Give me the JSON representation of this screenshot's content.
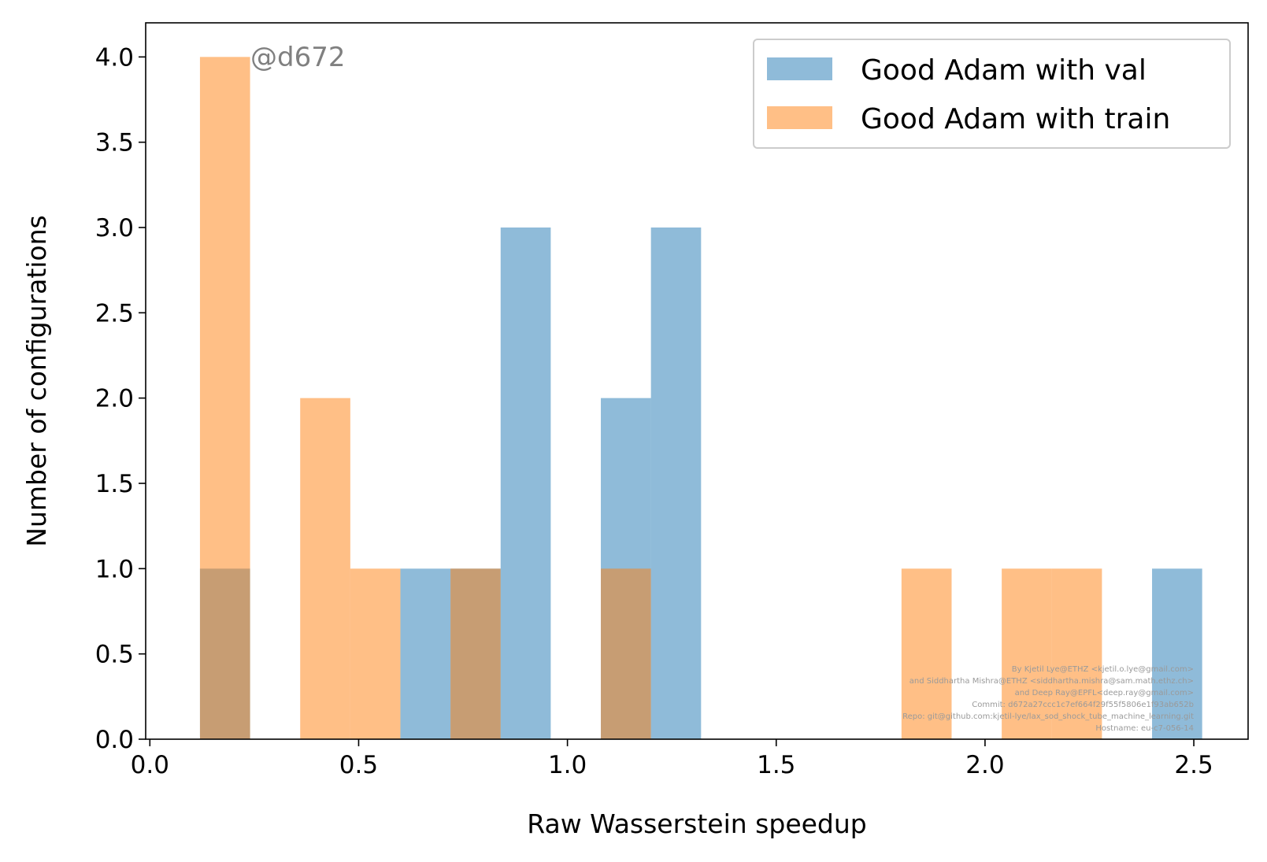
{
  "chart_data": {
    "type": "bar",
    "xlabel": "Raw Wasserstein speedup",
    "ylabel": "Number of configurations",
    "xlim": [
      -0.01,
      2.63
    ],
    "ylim": [
      0,
      4.2
    ],
    "x_ticks": [
      "0.0",
      "0.5",
      "1.0",
      "1.5",
      "2.0",
      "2.5"
    ],
    "y_ticks": [
      "0.0",
      "0.5",
      "1.0",
      "1.5",
      "2.0",
      "2.5",
      "3.0",
      "3.5",
      "4.0"
    ],
    "bin_edges": [
      0.12,
      0.24,
      0.36,
      0.48,
      0.6,
      0.72,
      0.84,
      0.96,
      1.08,
      1.2,
      1.32,
      1.44,
      1.56,
      1.68,
      1.8,
      1.92,
      2.04,
      2.16,
      2.28,
      2.4,
      2.52
    ],
    "series": [
      {
        "name": "Good Adam with val",
        "color": "#1f77b4",
        "values": [
          1,
          0,
          0,
          0,
          1,
          1,
          3,
          0,
          2,
          3,
          0,
          0,
          0,
          0,
          0,
          0,
          0,
          0,
          0,
          1
        ]
      },
      {
        "name": "Good Adam with train",
        "color": "#ff7f0e",
        "values": [
          4,
          0,
          2,
          1,
          0,
          1,
          0,
          0,
          1,
          0,
          0,
          0,
          0,
          0,
          1,
          0,
          1,
          1,
          0,
          0
        ]
      }
    ],
    "bar_alpha": 0.5,
    "legend_placement": "top-right",
    "grid": false,
    "annotation": "@d672",
    "credits": [
      "By Kjetil Lye@ETHZ <kjetil.o.lye@gmail.com>",
      "and Siddhartha Mishra@ETHZ <siddhartha.mishra@sam.math.ethz.ch>",
      "and Deep Ray@EPFL<deep.ray@gmail.com>",
      "Commit: d672a27ccc1c7ef664f29f55f5806e1f93ab652b",
      "Repo: git@github.com:kjetil-lye/lax_sod_shock_tube_machine_learning.git",
      "Hostname: eu-c7-056-14"
    ]
  }
}
